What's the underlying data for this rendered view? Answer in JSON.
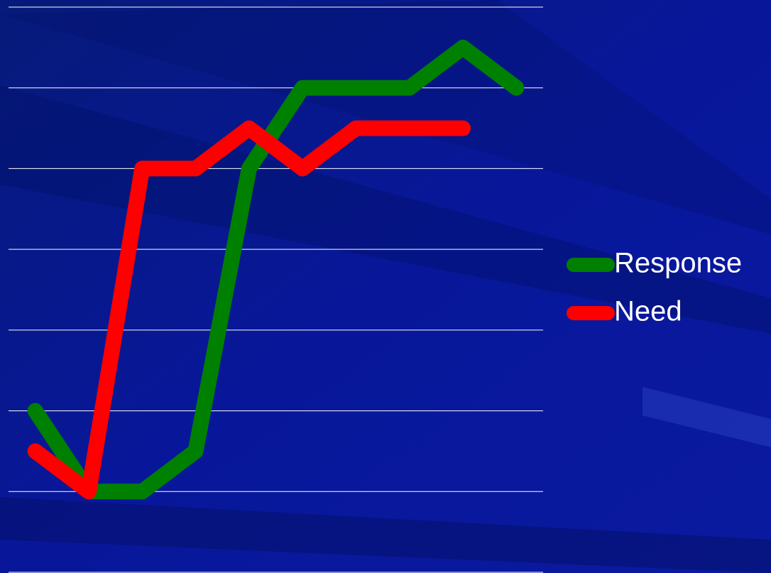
{
  "chart_data": {
    "type": "line",
    "categories": [
      null,
      null,
      null,
      null,
      null,
      null,
      null,
      null,
      null,
      null
    ],
    "series": [
      {
        "name": "Response",
        "color": "#008000",
        "values": [
          2,
          1,
          1,
          1.5,
          5,
          6,
          6,
          6,
          6.5,
          6
        ]
      },
      {
        "name": "Need",
        "color": "#ff0000",
        "values": [
          1.5,
          1,
          5,
          5,
          5.5,
          5,
          5.5,
          5.5,
          5.5,
          null
        ]
      }
    ],
    "ylim": [
      0,
      7
    ],
    "yticks": [
      0,
      1,
      2,
      3,
      4,
      5,
      6,
      7
    ],
    "grid": true,
    "legend": "right"
  }
}
